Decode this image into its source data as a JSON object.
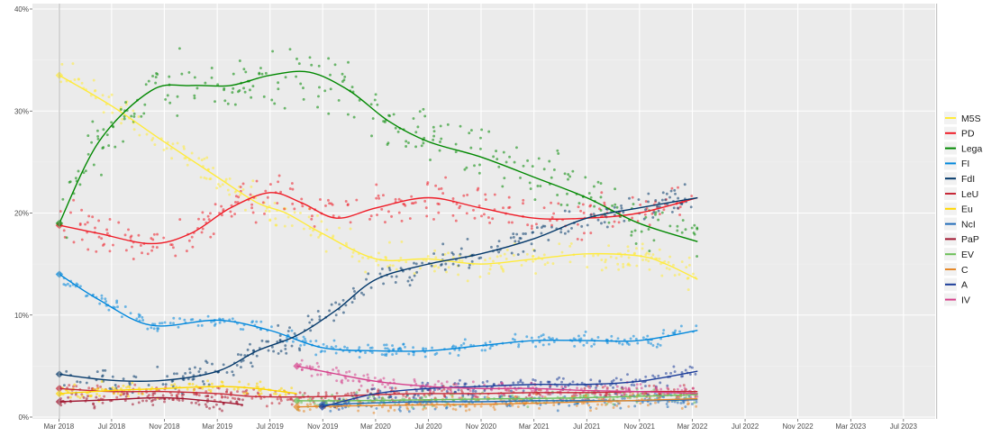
{
  "chart_data": {
    "type": "scatter",
    "title": "",
    "xlabel": "",
    "ylabel": "",
    "x_range": [
      2018.0,
      2023.7
    ],
    "ylim": [
      0,
      40
    ],
    "y_ticks": [
      {
        "value": 0,
        "label": "0%"
      },
      {
        "value": 10,
        "label": "10%"
      },
      {
        "value": 20,
        "label": "20%"
      },
      {
        "value": 30,
        "label": "30%"
      },
      {
        "value": 40,
        "label": "40%"
      }
    ],
    "x_ticks": [
      {
        "value": 2018.167,
        "label": "Mar 2018"
      },
      {
        "value": 2018.5,
        "label": "Jul 2018"
      },
      {
        "value": 2018.833,
        "label": "Nov 2018"
      },
      {
        "value": 2019.167,
        "label": "Mar 2019"
      },
      {
        "value": 2019.5,
        "label": "Jul 2019"
      },
      {
        "value": 2019.833,
        "label": "Nov 2019"
      },
      {
        "value": 2020.167,
        "label": "Mar 2020"
      },
      {
        "value": 2020.5,
        "label": "Jul 2020"
      },
      {
        "value": 2020.833,
        "label": "Nov 2020"
      },
      {
        "value": 2021.167,
        "label": "Mar 2021"
      },
      {
        "value": 2021.5,
        "label": "Jul 2021"
      },
      {
        "value": 2021.833,
        "label": "Nov 2021"
      },
      {
        "value": 2022.167,
        "label": "Mar 2022"
      },
      {
        "value": 2022.5,
        "label": "Jul 2022"
      },
      {
        "value": 2022.833,
        "label": "Nov 2022"
      },
      {
        "value": 2023.167,
        "label": "Mar 2023"
      },
      {
        "value": 2023.5,
        "label": "Jul 2023"
      }
    ],
    "event_lines": [
      2018.17,
      2023.71
    ],
    "legend_position": "right",
    "series": [
      {
        "name": "M5S",
        "color": "#FFEB3B",
        "trend": [
          [
            2018.17,
            33.5
          ],
          [
            2018.5,
            30.5
          ],
          [
            2018.83,
            27.0
          ],
          [
            2019.17,
            23.5
          ],
          [
            2019.42,
            21.0
          ],
          [
            2019.6,
            20.0
          ],
          [
            2019.83,
            18.0
          ],
          [
            2020.17,
            15.5
          ],
          [
            2020.5,
            15.5
          ],
          [
            2020.83,
            15.0
          ],
          [
            2021.17,
            15.5
          ],
          [
            2021.5,
            16.0
          ],
          [
            2021.83,
            15.8
          ],
          [
            2022.0,
            15.0
          ],
          [
            2022.2,
            13.5
          ]
        ]
      },
      {
        "name": "PD",
        "color": "#EF1C27",
        "trend": [
          [
            2018.17,
            18.8
          ],
          [
            2018.42,
            18.0
          ],
          [
            2018.75,
            17.0
          ],
          [
            2019.0,
            18.0
          ],
          [
            2019.25,
            20.5
          ],
          [
            2019.5,
            22.0
          ],
          [
            2019.7,
            21.0
          ],
          [
            2019.92,
            19.5
          ],
          [
            2020.17,
            20.5
          ],
          [
            2020.5,
            21.5
          ],
          [
            2020.83,
            20.5
          ],
          [
            2021.17,
            19.5
          ],
          [
            2021.5,
            19.5
          ],
          [
            2021.83,
            20.0
          ],
          [
            2022.2,
            21.5
          ]
        ]
      },
      {
        "name": "Lega",
        "color": "#008800",
        "trend": [
          [
            2018.17,
            19.0
          ],
          [
            2018.42,
            27.0
          ],
          [
            2018.75,
            32.0
          ],
          [
            2019.0,
            32.5
          ],
          [
            2019.25,
            32.5
          ],
          [
            2019.5,
            33.5
          ],
          [
            2019.75,
            33.8
          ],
          [
            2020.0,
            32.0
          ],
          [
            2020.25,
            29.0
          ],
          [
            2020.5,
            27.0
          ],
          [
            2020.83,
            25.5
          ],
          [
            2021.17,
            23.5
          ],
          [
            2021.5,
            21.5
          ],
          [
            2021.83,
            19.0
          ],
          [
            2022.2,
            17.2
          ]
        ]
      },
      {
        "name": "FI",
        "color": "#0087DC",
        "trend": [
          [
            2018.17,
            14.0
          ],
          [
            2018.42,
            11.5
          ],
          [
            2018.75,
            9.0
          ],
          [
            2019.17,
            9.5
          ],
          [
            2019.5,
            8.5
          ],
          [
            2019.83,
            6.8
          ],
          [
            2020.17,
            6.5
          ],
          [
            2020.5,
            6.5
          ],
          [
            2020.83,
            7.0
          ],
          [
            2021.17,
            7.5
          ],
          [
            2021.5,
            7.5
          ],
          [
            2021.83,
            7.5
          ],
          [
            2022.2,
            8.5
          ]
        ]
      },
      {
        "name": "FdI",
        "color": "#03386A",
        "trend": [
          [
            2018.17,
            4.2
          ],
          [
            2018.5,
            3.6
          ],
          [
            2018.83,
            3.6
          ],
          [
            2019.17,
            4.5
          ],
          [
            2019.42,
            6.5
          ],
          [
            2019.67,
            8.0
          ],
          [
            2019.92,
            10.5
          ],
          [
            2020.17,
            13.5
          ],
          [
            2020.5,
            15.0
          ],
          [
            2020.83,
            16.0
          ],
          [
            2021.17,
            17.5
          ],
          [
            2021.5,
            19.5
          ],
          [
            2021.83,
            20.5
          ],
          [
            2022.2,
            21.5
          ]
        ]
      },
      {
        "name": "LeU",
        "color": "#C72837",
        "trend": [
          [
            2018.17,
            2.8
          ],
          [
            2018.5,
            2.5
          ],
          [
            2018.83,
            2.5
          ],
          [
            2019.17,
            2.3
          ],
          [
            2019.42,
            2.0
          ],
          [
            2019.83,
            2.0
          ],
          [
            2020.17,
            2.2
          ],
          [
            2020.5,
            2.3
          ],
          [
            2020.83,
            2.3
          ],
          [
            2021.17,
            2.4
          ],
          [
            2021.5,
            2.4
          ],
          [
            2021.83,
            2.5
          ],
          [
            2022.2,
            2.5
          ]
        ]
      },
      {
        "name": "Eu",
        "color": "#FFD700",
        "trend": [
          [
            2018.17,
            2.3
          ],
          [
            2018.5,
            2.6
          ],
          [
            2018.83,
            2.8
          ],
          [
            2019.17,
            3.0
          ],
          [
            2019.42,
            2.8
          ],
          [
            2019.67,
            2.3
          ]
        ]
      },
      {
        "name": "NcI",
        "color": "#1F6BB8",
        "trend": [
          [
            2019.83,
            1.2
          ],
          [
            2020.17,
            1.4
          ],
          [
            2020.5,
            1.5
          ],
          [
            2020.83,
            1.5
          ],
          [
            2021.17,
            1.6
          ],
          [
            2021.5,
            1.6
          ],
          [
            2021.83,
            1.6
          ],
          [
            2022.2,
            1.7
          ]
        ]
      },
      {
        "name": "PaP",
        "color": "#A0142E",
        "trend": [
          [
            2018.17,
            1.5
          ],
          [
            2018.5,
            1.7
          ],
          [
            2018.83,
            1.9
          ],
          [
            2019.17,
            1.5
          ],
          [
            2019.33,
            1.2
          ]
        ]
      },
      {
        "name": "EV",
        "color": "#6CBF58",
        "trend": [
          [
            2019.67,
            1.6
          ],
          [
            2020.0,
            1.6
          ],
          [
            2020.5,
            1.7
          ],
          [
            2021.0,
            1.8
          ],
          [
            2021.5,
            1.9
          ],
          [
            2022.2,
            2.2
          ]
        ]
      },
      {
        "name": "C",
        "color": "#E5892A",
        "trend": [
          [
            2019.67,
            1.0
          ],
          [
            2020.0,
            1.1
          ],
          [
            2020.5,
            1.2
          ],
          [
            2021.0,
            1.3
          ],
          [
            2021.5,
            1.5
          ],
          [
            2022.2,
            1.8
          ]
        ]
      },
      {
        "name": "A",
        "color": "#1B3C99",
        "trend": [
          [
            2019.83,
            1.0
          ],
          [
            2020.17,
            2.3
          ],
          [
            2020.5,
            2.8
          ],
          [
            2020.83,
            3.0
          ],
          [
            2021.17,
            3.2
          ],
          [
            2021.5,
            3.2
          ],
          [
            2021.83,
            3.5
          ],
          [
            2022.2,
            4.5
          ]
        ]
      },
      {
        "name": "IV",
        "color": "#D6418C",
        "trend": [
          [
            2019.67,
            5.0
          ],
          [
            2019.83,
            4.5
          ],
          [
            2020.17,
            3.5
          ],
          [
            2020.5,
            3.0
          ],
          [
            2020.83,
            2.8
          ],
          [
            2021.17,
            2.8
          ],
          [
            2021.5,
            2.6
          ],
          [
            2021.83,
            2.5
          ],
          [
            2022.2,
            2.3
          ]
        ]
      }
    ]
  }
}
